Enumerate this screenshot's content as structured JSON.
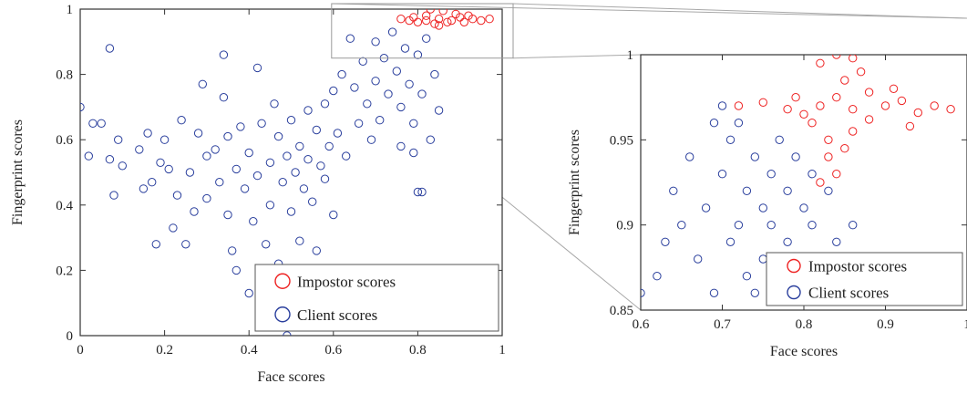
{
  "chart_data": [
    {
      "type": "scatter",
      "panel": "main",
      "xlabel": "Face scores",
      "ylabel": "Fingerprint scores",
      "xlim": [
        0,
        1
      ],
      "ylim": [
        0,
        1
      ],
      "xticks": [
        "0",
        "0.2",
        "0.4",
        "0.6",
        "0.8",
        "1"
      ],
      "yticks": [
        "0",
        "0.2",
        "0.4",
        "0.6",
        "0.8",
        "1"
      ],
      "grid": false,
      "legend_position": "bottom-right",
      "series": [
        {
          "name": "Impostor scores",
          "color": "#ee2222",
          "marker": "circle-open",
          "points": [
            [
              0.76,
              0.97
            ],
            [
              0.79,
              0.975
            ],
            [
              0.82,
              0.98
            ],
            [
              0.85,
              0.97
            ],
            [
              0.88,
              0.965
            ],
            [
              0.9,
              0.975
            ],
            [
              0.93,
              0.97
            ],
            [
              0.95,
              0.965
            ],
            [
              0.97,
              0.97
            ],
            [
              0.83,
              1.0
            ],
            [
              0.86,
              0.995
            ],
            [
              0.8,
              0.96
            ],
            [
              0.84,
              0.955
            ],
            [
              0.87,
              0.96
            ],
            [
              0.91,
              0.96
            ],
            [
              0.78,
              0.965
            ],
            [
              0.82,
              0.965
            ],
            [
              0.89,
              0.985
            ],
            [
              0.92,
              0.98
            ],
            [
              0.85,
              0.95
            ]
          ]
        },
        {
          "name": "Client scores",
          "color": "#2a3f9d",
          "marker": "circle-open",
          "points": [
            [
              0.0,
              0.7
            ],
            [
              0.02,
              0.55
            ],
            [
              0.03,
              0.65
            ],
            [
              0.05,
              0.65
            ],
            [
              0.07,
              0.54
            ],
            [
              0.07,
              0.88
            ],
            [
              0.08,
              0.43
            ],
            [
              0.09,
              0.6
            ],
            [
              0.1,
              0.52
            ],
            [
              0.14,
              0.57
            ],
            [
              0.15,
              0.45
            ],
            [
              0.16,
              0.62
            ],
            [
              0.17,
              0.47
            ],
            [
              0.18,
              0.28
            ],
            [
              0.19,
              0.53
            ],
            [
              0.2,
              0.6
            ],
            [
              0.21,
              0.51
            ],
            [
              0.22,
              0.33
            ],
            [
              0.23,
              0.43
            ],
            [
              0.24,
              0.66
            ],
            [
              0.25,
              0.28
            ],
            [
              0.26,
              0.5
            ],
            [
              0.27,
              0.38
            ],
            [
              0.28,
              0.62
            ],
            [
              0.29,
              0.77
            ],
            [
              0.3,
              0.55
            ],
            [
              0.3,
              0.42
            ],
            [
              0.32,
              0.57
            ],
            [
              0.33,
              0.47
            ],
            [
              0.34,
              0.86
            ],
            [
              0.34,
              0.73
            ],
            [
              0.35,
              0.61
            ],
            [
              0.35,
              0.37
            ],
            [
              0.36,
              0.26
            ],
            [
              0.37,
              0.51
            ],
            [
              0.37,
              0.2
            ],
            [
              0.38,
              0.64
            ],
            [
              0.39,
              0.45
            ],
            [
              0.4,
              0.13
            ],
            [
              0.4,
              0.56
            ],
            [
              0.41,
              0.35
            ],
            [
              0.42,
              0.82
            ],
            [
              0.42,
              0.49
            ],
            [
              0.43,
              0.65
            ],
            [
              0.44,
              0.28
            ],
            [
              0.45,
              0.53
            ],
            [
              0.45,
              0.4
            ],
            [
              0.46,
              0.71
            ],
            [
              0.47,
              0.61
            ],
            [
              0.47,
              0.22
            ],
            [
              0.48,
              0.47
            ],
            [
              0.49,
              0.55
            ],
            [
              0.49,
              0.0
            ],
            [
              0.5,
              0.66
            ],
            [
              0.5,
              0.38
            ],
            [
              0.51,
              0.5
            ],
            [
              0.52,
              0.58
            ],
            [
              0.52,
              0.29
            ],
            [
              0.53,
              0.45
            ],
            [
              0.54,
              0.69
            ],
            [
              0.54,
              0.54
            ],
            [
              0.55,
              0.41
            ],
            [
              0.56,
              0.63
            ],
            [
              0.56,
              0.26
            ],
            [
              0.57,
              0.52
            ],
            [
              0.58,
              0.71
            ],
            [
              0.58,
              0.48
            ],
            [
              0.59,
              0.58
            ],
            [
              0.6,
              0.75
            ],
            [
              0.6,
              0.37
            ],
            [
              0.61,
              0.62
            ],
            [
              0.62,
              0.8
            ],
            [
              0.63,
              0.55
            ],
            [
              0.64,
              0.91
            ],
            [
              0.65,
              0.76
            ],
            [
              0.66,
              0.65
            ],
            [
              0.67,
              0.84
            ],
            [
              0.68,
              0.71
            ],
            [
              0.69,
              0.6
            ],
            [
              0.7,
              0.9
            ],
            [
              0.7,
              0.78
            ],
            [
              0.71,
              0.66
            ],
            [
              0.72,
              0.85
            ],
            [
              0.73,
              0.74
            ],
            [
              0.74,
              0.93
            ],
            [
              0.75,
              0.81
            ],
            [
              0.76,
              0.7
            ],
            [
              0.77,
              0.88
            ],
            [
              0.78,
              0.77
            ],
            [
              0.79,
              0.65
            ],
            [
              0.8,
              0.86
            ],
            [
              0.81,
              0.74
            ],
            [
              0.82,
              0.91
            ],
            [
              0.83,
              0.6
            ],
            [
              0.84,
              0.8
            ],
            [
              0.85,
              0.69
            ],
            [
              0.8,
              0.44
            ],
            [
              0.81,
              0.44
            ],
            [
              0.76,
              0.58
            ],
            [
              0.79,
              0.56
            ]
          ]
        }
      ]
    },
    {
      "type": "scatter",
      "panel": "zoom",
      "xlabel": "Face scores",
      "ylabel": "Fingerprint scores",
      "xlim": [
        0.6,
        1
      ],
      "ylim": [
        0.85,
        1
      ],
      "xticks": [
        "0.6",
        "0.7",
        "0.8",
        "0.9",
        "1"
      ],
      "yticks": [
        "0.85",
        "0.9",
        "0.95",
        "1"
      ],
      "grid": false,
      "legend_position": "bottom-right",
      "series": [
        {
          "name": "Impostor scores",
          "color": "#ee2222",
          "marker": "circle-open",
          "points": [
            [
              0.72,
              0.97
            ],
            [
              0.75,
              0.972
            ],
            [
              0.78,
              0.968
            ],
            [
              0.8,
              0.965
            ],
            [
              0.82,
              0.97
            ],
            [
              0.84,
              0.975
            ],
            [
              0.86,
              0.968
            ],
            [
              0.88,
              0.962
            ],
            [
              0.9,
              0.97
            ],
            [
              0.92,
              0.973
            ],
            [
              0.94,
              0.966
            ],
            [
              0.96,
              0.97
            ],
            [
              0.98,
              0.968
            ],
            [
              0.82,
              0.995
            ],
            [
              0.84,
              1.0
            ],
            [
              0.86,
              0.998
            ],
            [
              0.83,
              0.95
            ],
            [
              0.85,
              0.945
            ],
            [
              0.84,
              0.93
            ],
            [
              0.86,
              0.955
            ],
            [
              0.81,
              0.96
            ],
            [
              0.88,
              0.978
            ],
            [
              0.79,
              0.975
            ],
            [
              0.91,
              0.98
            ],
            [
              0.93,
              0.958
            ],
            [
              0.85,
              0.985
            ],
            [
              0.87,
              0.99
            ],
            [
              0.83,
              0.94
            ],
            [
              0.82,
              0.925
            ]
          ]
        },
        {
          "name": "Client scores",
          "color": "#2a3f9d",
          "marker": "circle-open",
          "points": [
            [
              0.6,
              0.86
            ],
            [
              0.62,
              0.87
            ],
            [
              0.63,
              0.89
            ],
            [
              0.64,
              0.92
            ],
            [
              0.65,
              0.9
            ],
            [
              0.66,
              0.94
            ],
            [
              0.67,
              0.88
            ],
            [
              0.68,
              0.91
            ],
            [
              0.69,
              0.86
            ],
            [
              0.7,
              0.93
            ],
            [
              0.71,
              0.95
            ],
            [
              0.71,
              0.89
            ],
            [
              0.72,
              0.9
            ],
            [
              0.73,
              0.87
            ],
            [
              0.73,
              0.92
            ],
            [
              0.74,
              0.94
            ],
            [
              0.74,
              0.86
            ],
            [
              0.75,
              0.91
            ],
            [
              0.75,
              0.88
            ],
            [
              0.76,
              0.93
            ],
            [
              0.76,
              0.9
            ],
            [
              0.77,
              0.87
            ],
            [
              0.77,
              0.95
            ],
            [
              0.78,
              0.92
            ],
            [
              0.78,
              0.89
            ],
            [
              0.79,
              0.86
            ],
            [
              0.79,
              0.94
            ],
            [
              0.8,
              0.91
            ],
            [
              0.8,
              0.88
            ],
            [
              0.81,
              0.93
            ],
            [
              0.81,
              0.9
            ],
            [
              0.82,
              0.87
            ],
            [
              0.83,
              0.92
            ],
            [
              0.84,
              0.89
            ],
            [
              0.85,
              0.86
            ],
            [
              0.86,
              0.9
            ],
            [
              0.87,
              0.88
            ],
            [
              0.88,
              0.86
            ],
            [
              0.89,
              0.87
            ],
            [
              0.9,
              0.86
            ],
            [
              0.7,
              0.97
            ],
            [
              0.69,
              0.96
            ],
            [
              0.72,
              0.96
            ]
          ]
        }
      ]
    }
  ]
}
